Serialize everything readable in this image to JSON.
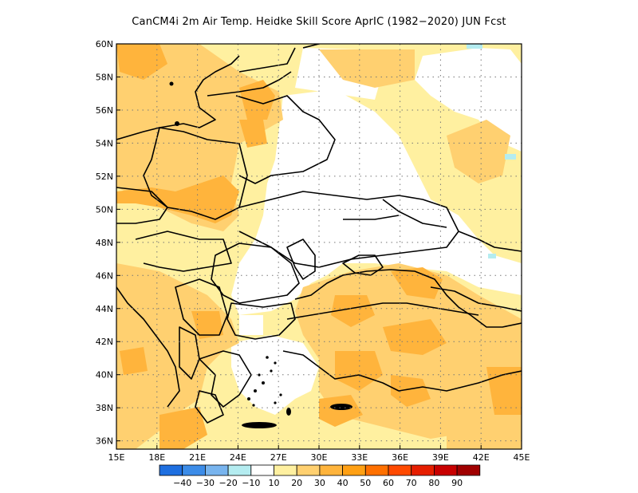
{
  "title": "CanCM4i  2m Air Temp. Heidke Skill Score AprIC (1982−2020) JUN Fcst",
  "map": {
    "lon_labels": [
      "15E",
      "18E",
      "21E",
      "24E",
      "27E",
      "30E",
      "33E",
      "36E",
      "39E",
      "42E",
      "45E"
    ],
    "lat_labels": [
      "60N",
      "58N",
      "56N",
      "54N",
      "52N",
      "50N",
      "48N",
      "46N",
      "44N",
      "42N",
      "40N",
      "38N",
      "36N"
    ],
    "grid": "dotted"
  },
  "legend": {
    "colors": [
      "#1e6fe0",
      "#3c8ce8",
      "#78b4ee",
      "#b4ecf0",
      "#ffffff",
      "#fff0a0",
      "#ffd070",
      "#ffb43c",
      "#ffa014",
      "#ff7000",
      "#ff4a00",
      "#e61e00",
      "#c80000",
      "#a00000"
    ],
    "labels": [
      "−40",
      "−30",
      "−20",
      "−10",
      "10",
      "20",
      "30",
      "40",
      "50",
      "60",
      "70",
      "80",
      "90"
    ]
  },
  "colors": {
    "light_yellow": "#fff0a0",
    "light_orange": "#ffd070",
    "orange": "#ffb43c",
    "light_blue": "#b4ecf0"
  }
}
